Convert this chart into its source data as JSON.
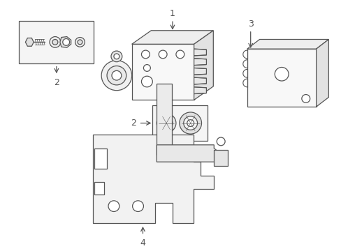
{
  "bg_color": "#ffffff",
  "line_color": "#555555",
  "fig_width": 4.89,
  "fig_height": 3.6,
  "dpi": 100
}
